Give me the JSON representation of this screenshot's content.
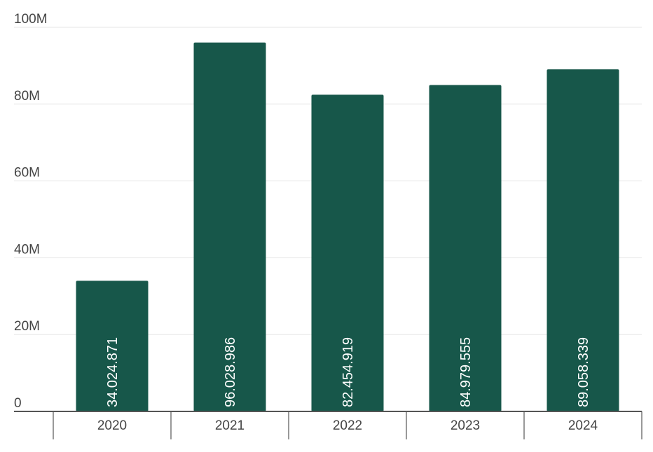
{
  "chart_data": {
    "type": "bar",
    "categories": [
      "2020",
      "2021",
      "2022",
      "2023",
      "2024"
    ],
    "values": [
      34024871,
      96028986,
      82454919,
      84979555,
      89058339
    ],
    "data_labels": [
      "34.024.871",
      "96.028.986",
      "82.454.919",
      "84.979.555",
      "89.058.339"
    ],
    "y_ticks": [
      {
        "value": 0,
        "label": "0"
      },
      {
        "value": 20000000,
        "label": "20M"
      },
      {
        "value": 40000000,
        "label": "40M"
      },
      {
        "value": 60000000,
        "label": "60M"
      },
      {
        "value": 80000000,
        "label": "80M"
      },
      {
        "value": 100000000,
        "label": "100M"
      }
    ],
    "ylim": [
      0,
      100000000
    ],
    "grid": true,
    "bar_color": "#17574a",
    "title": "",
    "xlabel": "",
    "ylabel": ""
  }
}
